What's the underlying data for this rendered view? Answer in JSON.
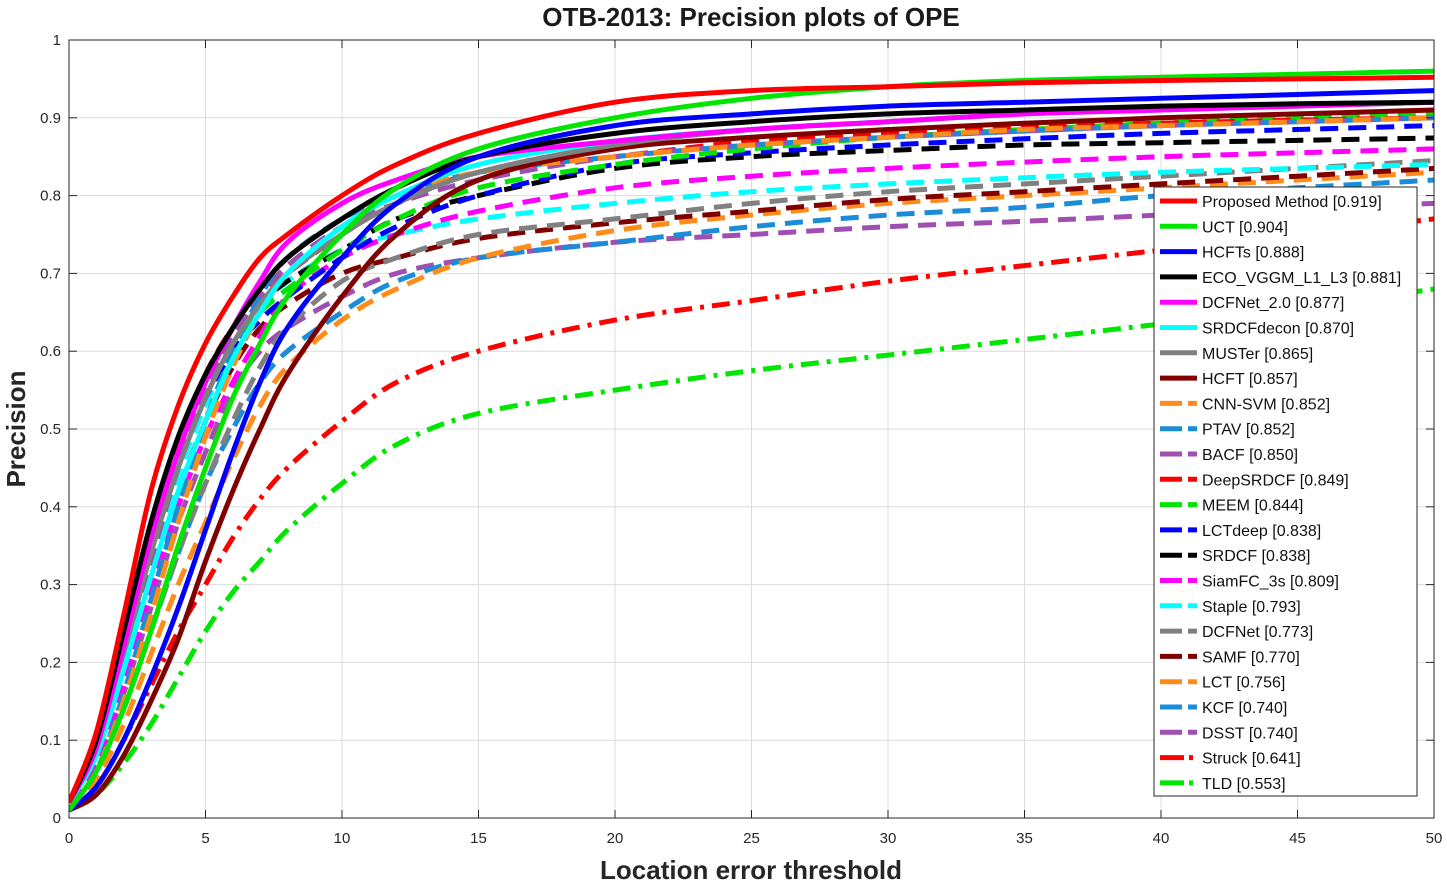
{
  "chart_data": {
    "type": "line",
    "title": "OTB-2013: Precision plots of OPE",
    "xlabel": "Location error threshold",
    "ylabel": "Precision",
    "xlim": [
      0,
      50
    ],
    "ylim": [
      0,
      1
    ],
    "x_ticks": [
      "0",
      "5",
      "10",
      "15",
      "20",
      "25",
      "30",
      "35",
      "40",
      "45",
      "50"
    ],
    "y_ticks": [
      "0",
      "0.1",
      "0.2",
      "0.3",
      "0.4",
      "0.5",
      "0.6",
      "0.7",
      "0.8",
      "0.9",
      "1"
    ],
    "grid": true,
    "legend_position": "right",
    "x": [
      0,
      1,
      2,
      3,
      4,
      5,
      6,
      7,
      8,
      10,
      12,
      15,
      20,
      25,
      30,
      35,
      40,
      45,
      50
    ],
    "series": [
      {
        "name": "Proposed Method [0.919]",
        "color": "#ff0000",
        "dash": "solid",
        "values": [
          0.02,
          0.11,
          0.26,
          0.42,
          0.53,
          0.61,
          0.67,
          0.72,
          0.75,
          0.8,
          0.84,
          0.88,
          0.92,
          0.935,
          0.94,
          0.945,
          0.948,
          0.95,
          0.952
        ]
      },
      {
        "name": "UCT [0.904]",
        "color": "#00e600",
        "dash": "solid",
        "values": [
          0.01,
          0.06,
          0.14,
          0.24,
          0.35,
          0.45,
          0.54,
          0.61,
          0.67,
          0.75,
          0.81,
          0.86,
          0.9,
          0.925,
          0.94,
          0.948,
          0.952,
          0.956,
          0.96
        ]
      },
      {
        "name": "HCFTs [0.888]",
        "color": "#0000ff",
        "dash": "solid",
        "values": [
          0.01,
          0.04,
          0.1,
          0.18,
          0.27,
          0.37,
          0.47,
          0.56,
          0.63,
          0.72,
          0.79,
          0.85,
          0.89,
          0.905,
          0.915,
          0.92,
          0.925,
          0.93,
          0.935
        ]
      },
      {
        "name": "ECO_VGGM_L1_L3 [0.881]",
        "color": "#000000",
        "dash": "solid",
        "values": [
          0.02,
          0.1,
          0.24,
          0.38,
          0.49,
          0.57,
          0.63,
          0.68,
          0.72,
          0.77,
          0.81,
          0.85,
          0.88,
          0.895,
          0.905,
          0.91,
          0.915,
          0.918,
          0.92
        ]
      },
      {
        "name": "DCFNet_2.0 [0.877]",
        "color": "#ff00ff",
        "dash": "solid",
        "values": [
          0.02,
          0.09,
          0.22,
          0.36,
          0.47,
          0.56,
          0.63,
          0.69,
          0.74,
          0.79,
          0.82,
          0.85,
          0.87,
          0.885,
          0.895,
          0.905,
          0.91,
          0.915,
          0.92
        ]
      },
      {
        "name": "SRDCFdecon [0.870]",
        "color": "#00ffff",
        "dash": "solid",
        "values": [
          0.02,
          0.08,
          0.19,
          0.31,
          0.42,
          0.51,
          0.59,
          0.65,
          0.7,
          0.76,
          0.8,
          0.84,
          0.87,
          0.885,
          0.895,
          0.905,
          0.91,
          0.915,
          0.92
        ]
      },
      {
        "name": "MUSTer [0.865]",
        "color": "#808080",
        "dash": "solid",
        "values": [
          0.02,
          0.09,
          0.21,
          0.34,
          0.45,
          0.54,
          0.61,
          0.66,
          0.7,
          0.75,
          0.79,
          0.83,
          0.865,
          0.885,
          0.895,
          0.905,
          0.91,
          0.915,
          0.92
        ]
      },
      {
        "name": "HCFT [0.857]",
        "color": "#800000",
        "dash": "solid",
        "values": [
          0.01,
          0.03,
          0.08,
          0.15,
          0.23,
          0.33,
          0.42,
          0.5,
          0.57,
          0.67,
          0.75,
          0.82,
          0.86,
          0.875,
          0.885,
          0.893,
          0.9,
          0.905,
          0.91
        ]
      },
      {
        "name": "CNN-SVM [0.852]",
        "color": "#ff8c1a",
        "dash": "dash",
        "values": [
          0.01,
          0.06,
          0.15,
          0.26,
          0.38,
          0.49,
          0.58,
          0.65,
          0.7,
          0.76,
          0.8,
          0.83,
          0.85,
          0.865,
          0.875,
          0.885,
          0.89,
          0.895,
          0.9
        ]
      },
      {
        "name": "PTAV [0.852]",
        "color": "#1a8cd8",
        "dash": "dash",
        "values": [
          0.01,
          0.06,
          0.16,
          0.28,
          0.4,
          0.51,
          0.6,
          0.67,
          0.72,
          0.77,
          0.8,
          0.83,
          0.85,
          0.865,
          0.875,
          0.883,
          0.89,
          0.895,
          0.9
        ]
      },
      {
        "name": "BACF [0.850]",
        "color": "#9e4fb0",
        "dash": "dash",
        "values": [
          0.02,
          0.08,
          0.2,
          0.33,
          0.45,
          0.55,
          0.62,
          0.67,
          0.71,
          0.76,
          0.79,
          0.82,
          0.85,
          0.865,
          0.875,
          0.883,
          0.89,
          0.895,
          0.9
        ]
      },
      {
        "name": "DeepSRDCF [0.849]",
        "color": "#ff0000",
        "dash": "dash",
        "values": [
          0.02,
          0.1,
          0.24,
          0.37,
          0.48,
          0.57,
          0.63,
          0.67,
          0.7,
          0.75,
          0.79,
          0.83,
          0.85,
          0.87,
          0.88,
          0.888,
          0.893,
          0.897,
          0.9
        ]
      },
      {
        "name": "MEEM [0.844]",
        "color": "#00e600",
        "dash": "dash",
        "values": [
          0.02,
          0.09,
          0.22,
          0.35,
          0.46,
          0.55,
          0.61,
          0.65,
          0.68,
          0.73,
          0.77,
          0.81,
          0.84,
          0.86,
          0.875,
          0.885,
          0.893,
          0.9,
          0.905
        ]
      },
      {
        "name": "LCTdeep [0.838]",
        "color": "#0000ff",
        "dash": "dash",
        "values": [
          0.02,
          0.09,
          0.22,
          0.35,
          0.46,
          0.54,
          0.6,
          0.64,
          0.67,
          0.72,
          0.76,
          0.8,
          0.84,
          0.855,
          0.865,
          0.873,
          0.88,
          0.885,
          0.89
        ]
      },
      {
        "name": "SRDCF [0.838]",
        "color": "#000000",
        "dash": "dash",
        "values": [
          0.02,
          0.1,
          0.24,
          0.37,
          0.48,
          0.56,
          0.62,
          0.66,
          0.69,
          0.73,
          0.77,
          0.8,
          0.835,
          0.85,
          0.858,
          0.865,
          0.868,
          0.871,
          0.874
        ]
      },
      {
        "name": "SiamFC_3s [0.809]",
        "color": "#ff00ff",
        "dash": "dash",
        "values": [
          0.02,
          0.07,
          0.17,
          0.29,
          0.4,
          0.49,
          0.56,
          0.62,
          0.67,
          0.72,
          0.75,
          0.78,
          0.81,
          0.825,
          0.835,
          0.843,
          0.85,
          0.855,
          0.86
        ]
      },
      {
        "name": "Staple [0.793]",
        "color": "#00ffff",
        "dash": "dash",
        "values": [
          0.02,
          0.08,
          0.2,
          0.33,
          0.44,
          0.53,
          0.6,
          0.65,
          0.69,
          0.73,
          0.75,
          0.77,
          0.79,
          0.805,
          0.815,
          0.823,
          0.83,
          0.835,
          0.84
        ]
      },
      {
        "name": "DCFNet [0.773]",
        "color": "#808080",
        "dash": "dash",
        "values": [
          0.02,
          0.06,
          0.14,
          0.24,
          0.34,
          0.43,
          0.51,
          0.58,
          0.63,
          0.69,
          0.72,
          0.75,
          0.77,
          0.79,
          0.805,
          0.815,
          0.825,
          0.835,
          0.845
        ]
      },
      {
        "name": "SAMF [0.770]",
        "color": "#800000",
        "dash": "dash",
        "values": [
          0.02,
          0.08,
          0.19,
          0.31,
          0.42,
          0.51,
          0.58,
          0.63,
          0.66,
          0.7,
          0.72,
          0.745,
          0.765,
          0.78,
          0.795,
          0.805,
          0.815,
          0.825,
          0.835
        ]
      },
      {
        "name": "LCT [0.756]",
        "color": "#ff8c1a",
        "dash": "dash",
        "values": [
          0.01,
          0.05,
          0.12,
          0.21,
          0.3,
          0.38,
          0.46,
          0.53,
          0.58,
          0.64,
          0.68,
          0.72,
          0.755,
          0.775,
          0.79,
          0.8,
          0.81,
          0.82,
          0.83
        ]
      },
      {
        "name": "KCF [0.740]",
        "color": "#1a8cd8",
        "dash": "dash",
        "values": [
          0.01,
          0.06,
          0.14,
          0.24,
          0.34,
          0.43,
          0.5,
          0.56,
          0.6,
          0.65,
          0.69,
          0.72,
          0.74,
          0.76,
          0.775,
          0.785,
          0.8,
          0.81,
          0.82
        ]
      },
      {
        "name": "DSST [0.740]",
        "color": "#9e4fb0",
        "dash": "dash",
        "values": [
          0.02,
          0.07,
          0.16,
          0.27,
          0.38,
          0.47,
          0.55,
          0.6,
          0.63,
          0.67,
          0.7,
          0.72,
          0.74,
          0.75,
          0.76,
          0.767,
          0.775,
          0.783,
          0.79
        ]
      },
      {
        "name": "Struck [0.641]",
        "color": "#ff0000",
        "dash": "dashdot",
        "values": [
          0.01,
          0.04,
          0.1,
          0.17,
          0.24,
          0.3,
          0.36,
          0.41,
          0.45,
          0.51,
          0.56,
          0.6,
          0.64,
          0.665,
          0.69,
          0.71,
          0.73,
          0.75,
          0.77
        ]
      },
      {
        "name": "TLD [0.553]",
        "color": "#00e600",
        "dash": "dashdot",
        "values": [
          0.01,
          0.03,
          0.07,
          0.12,
          0.18,
          0.24,
          0.29,
          0.33,
          0.37,
          0.43,
          0.48,
          0.52,
          0.55,
          0.575,
          0.595,
          0.615,
          0.635,
          0.655,
          0.68
        ]
      }
    ]
  }
}
